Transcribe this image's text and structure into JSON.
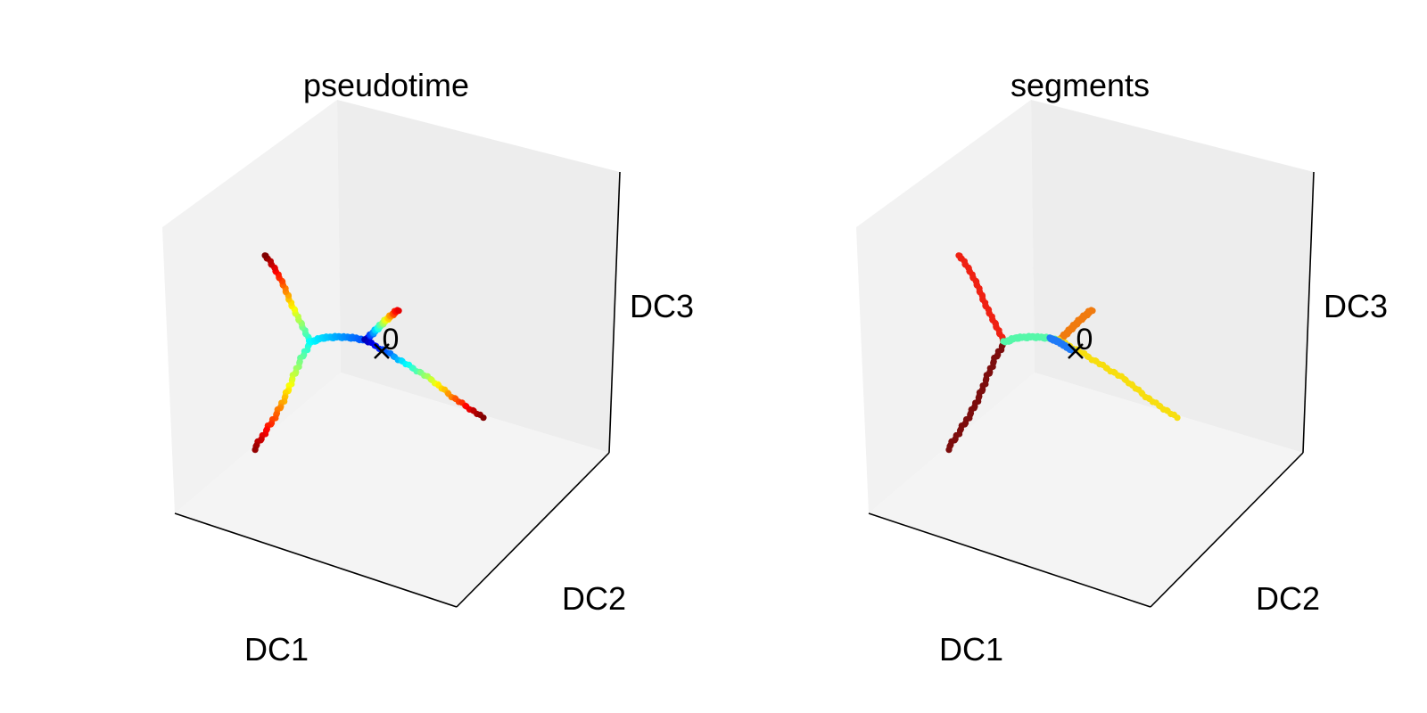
{
  "chart_data": [
    {
      "type": "scatter",
      "projection": "3d",
      "title": "pseudotime",
      "xlabel": "DC1",
      "ylabel": "DC2",
      "zlabel": "DC3",
      "root_label": "0",
      "colormap": "jet",
      "colors": {
        "pane_left": "#f2f2f2",
        "pane_right": "#ededed",
        "pane_floor": "#f4f4f4",
        "edge_line": "#000000"
      },
      "branches": [
        {
          "name": "b-left-up",
          "color_start": 0.38,
          "color_end": 1.0
        },
        {
          "name": "b-left-down",
          "color_start": 0.38,
          "color_end": 0.98
        },
        {
          "name": "b-center",
          "color_start": 0.38,
          "color_end": 0.2
        },
        {
          "name": "b-right-small",
          "color_start": 0.05,
          "color_end": 0.9
        },
        {
          "name": "b-right-long",
          "color_start": 0.05,
          "color_end": 1.0
        }
      ]
    },
    {
      "type": "scatter",
      "projection": "3d",
      "title": "segments",
      "xlabel": "DC1",
      "ylabel": "DC2",
      "zlabel": "DC3",
      "root_label": "0",
      "colors": {
        "pane_left": "#f2f2f2",
        "pane_right": "#ededed",
        "pane_floor": "#f4f4f4",
        "edge_line": "#000000"
      },
      "branches": [
        {
          "name": "b-left-up",
          "color": "#ef2113"
        },
        {
          "name": "b-left-down",
          "color": "#7c0d0d"
        },
        {
          "name": "b-center",
          "color": "#55f7a9"
        },
        {
          "name": "b-right-small",
          "color": "#f07b0f"
        },
        {
          "name": "b-right-long",
          "color": "#f7de0f"
        },
        {
          "name": "b-root",
          "color": "#1f7af7"
        }
      ]
    }
  ]
}
